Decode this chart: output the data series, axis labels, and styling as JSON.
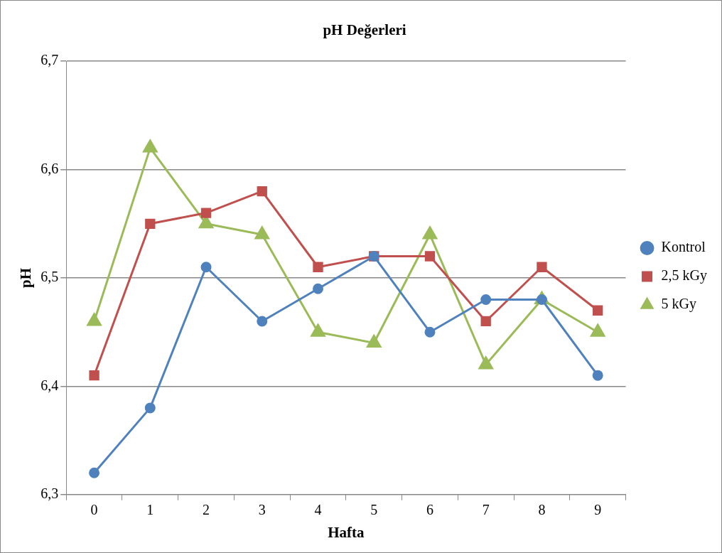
{
  "chart_data": {
    "type": "line",
    "title": "pH Değerleri",
    "xlabel": "Hafta",
    "ylabel": "pH",
    "categories": [
      "0",
      "1",
      "2",
      "3",
      "4",
      "5",
      "6",
      "7",
      "8",
      "9"
    ],
    "series": [
      {
        "name": "Kontrol",
        "color": "#4f81bd",
        "marker": "circle",
        "values": [
          6.32,
          6.38,
          6.51,
          6.46,
          6.49,
          6.52,
          6.45,
          6.48,
          6.48,
          6.41
        ]
      },
      {
        "name": "2,5 kGy",
        "color": "#c0504d",
        "marker": "square",
        "values": [
          6.41,
          6.55,
          6.56,
          6.58,
          6.51,
          6.52,
          6.52,
          6.46,
          6.51,
          6.47
        ]
      },
      {
        "name": "5 kGy",
        "color": "#9bbb59",
        "marker": "triangle",
        "values": [
          6.46,
          6.62,
          6.55,
          6.54,
          6.45,
          6.44,
          6.54,
          6.42,
          6.48,
          6.45
        ]
      }
    ],
    "ylim": [
      6.3,
      6.7
    ],
    "yticks": [
      {
        "value": 6.3,
        "label": "6,3"
      },
      {
        "value": 6.4,
        "label": "6,4"
      },
      {
        "value": 6.5,
        "label": "6,5"
      },
      {
        "value": 6.6,
        "label": "6,6"
      },
      {
        "value": 6.7,
        "label": "6,7"
      }
    ],
    "grid": "y",
    "legend": "right",
    "line_style": "solid"
  }
}
